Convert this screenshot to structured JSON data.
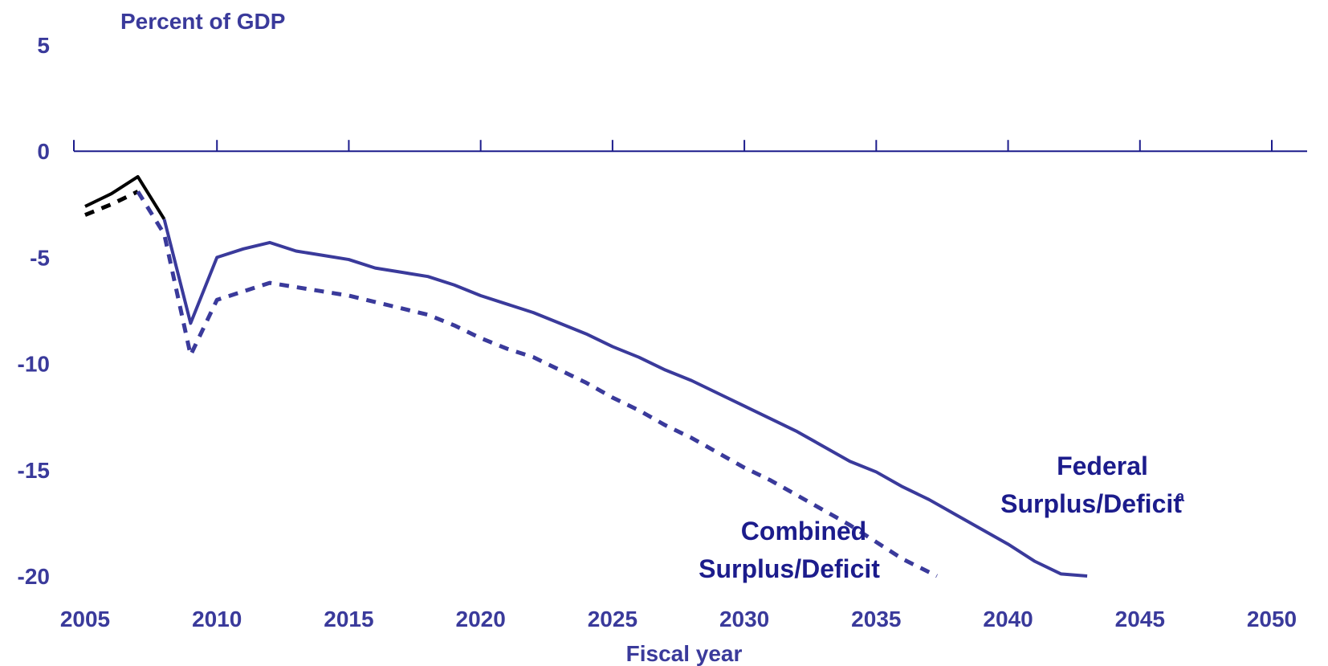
{
  "chart_data": {
    "type": "line",
    "ylabel": "Percent of GDP",
    "xlabel": "Fiscal year",
    "xlim": [
      2005,
      2050
    ],
    "ylim": [
      -20,
      5
    ],
    "y_ticks": [
      5,
      0,
      -5,
      -10,
      -15,
      -20
    ],
    "y_tick_labels": [
      "5",
      "0",
      "-5",
      "-10",
      "-15",
      "-20"
    ],
    "x_ticks": [
      2005,
      2010,
      2015,
      2020,
      2025,
      2030,
      2035,
      2040,
      2045,
      2050
    ],
    "x_tick_labels": [
      "2005",
      "2010",
      "2015",
      "2020",
      "2025",
      "2030",
      "2035",
      "2040",
      "2045",
      "2050"
    ],
    "historical_color": "#000000",
    "projection_color": "#3a3a9b",
    "series": [
      {
        "name": "Federal Surplus/Deficit",
        "name_line1": "Federal",
        "name_line2": "Surplus/Deficit",
        "footnote_marker": "a",
        "style": "solid",
        "x": [
          2005,
          2006,
          2007,
          2008,
          2009,
          2010,
          2011,
          2012,
          2013,
          2014,
          2015,
          2016,
          2017,
          2018,
          2019,
          2020,
          2021,
          2022,
          2023,
          2024,
          2025,
          2026,
          2027,
          2028,
          2029,
          2030,
          2031,
          2032,
          2033,
          2034,
          2035,
          2036,
          2037,
          2038,
          2039,
          2040,
          2041,
          2042,
          2043
        ],
        "values": [
          -2.6,
          -2.0,
          -1.2,
          -3.2,
          -8.1,
          -5.0,
          -4.6,
          -4.3,
          -4.7,
          -4.9,
          -5.1,
          -5.5,
          -5.7,
          -5.9,
          -6.3,
          -6.8,
          -7.2,
          -7.6,
          -8.1,
          -8.6,
          -9.2,
          -9.7,
          -10.3,
          -10.8,
          -11.4,
          -12.0,
          -12.6,
          -13.2,
          -13.9,
          -14.6,
          -15.1,
          -15.8,
          -16.4,
          -17.1,
          -17.8,
          -18.5,
          -19.3,
          -19.9,
          -20.0
        ],
        "historical_until": 2008
      },
      {
        "name": "Combined Surplus/Deficit",
        "name_line1": "Combined",
        "name_line2": "Surplus/Deficit",
        "style": "dashed",
        "x": [
          2005,
          2006,
          2007,
          2008,
          2009,
          2010,
          2011,
          2012,
          2013,
          2014,
          2015,
          2016,
          2017,
          2018,
          2019,
          2020,
          2021,
          2022,
          2023,
          2024,
          2025,
          2026,
          2027,
          2028,
          2029,
          2030,
          2031,
          2032,
          2033,
          2034,
          2035,
          2036,
          2037.3
        ],
        "values": [
          -3.0,
          -2.5,
          -1.9,
          -3.9,
          -9.6,
          -7.0,
          -6.6,
          -6.2,
          -6.4,
          -6.6,
          -6.8,
          -7.1,
          -7.4,
          -7.7,
          -8.2,
          -8.8,
          -9.3,
          -9.7,
          -10.3,
          -10.9,
          -11.6,
          -12.2,
          -12.9,
          -13.5,
          -14.2,
          -14.9,
          -15.5,
          -16.2,
          -16.9,
          -17.6,
          -18.4,
          -19.2,
          -20.0
        ],
        "historical_until": 2007
      }
    ]
  }
}
